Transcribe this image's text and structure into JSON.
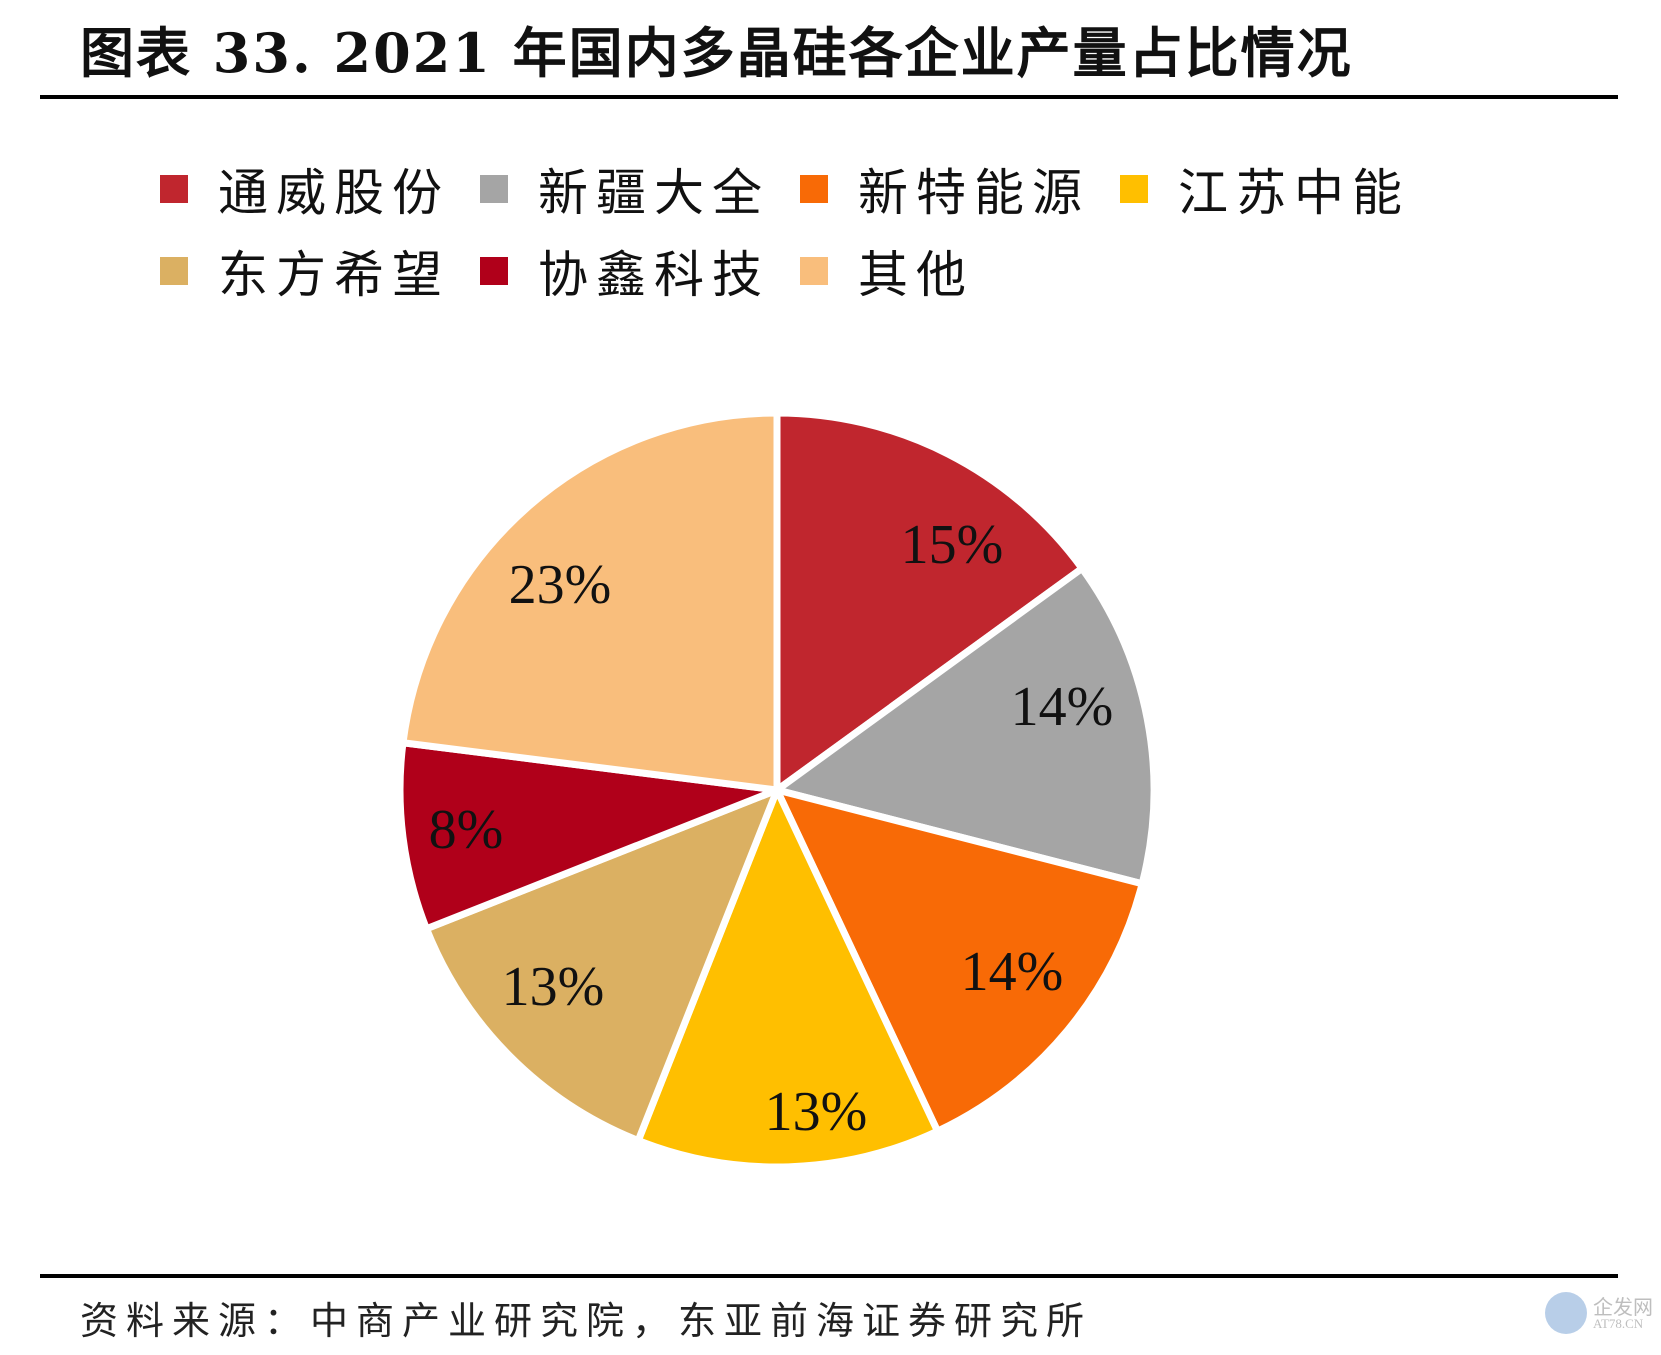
{
  "header": {
    "title": "图表 33. 2021 年国内多晶硅各企业产量占比情况"
  },
  "legend": {
    "rows": [
      [
        {
          "label": "通威股份",
          "color": "#C0262E"
        },
        {
          "label": "新疆大全",
          "color": "#A5A5A5"
        },
        {
          "label": "新特能源",
          "color": "#F86A06"
        },
        {
          "label": "江苏中能",
          "color": "#FFBF00"
        }
      ],
      [
        {
          "label": "东方希望",
          "color": "#DBB062"
        },
        {
          "label": "协鑫科技",
          "color": "#B0001A"
        },
        {
          "label": "其他",
          "color": "#F9BE7C"
        }
      ]
    ]
  },
  "chart_data": {
    "type": "pie",
    "title": "图表 33. 2021 年国内多晶硅各企业产量占比情况",
    "categories": [
      "通威股份",
      "新疆大全",
      "新特能源",
      "江苏中能",
      "东方希望",
      "协鑫科技",
      "其他"
    ],
    "values": [
      15,
      14,
      14,
      13,
      13,
      8,
      23
    ],
    "labels": [
      "15%",
      "14%",
      "14%",
      "13%",
      "13%",
      "8%",
      "23%"
    ],
    "colors": [
      "#C0262E",
      "#A5A5A5",
      "#F86A06",
      "#FFBF00",
      "#DBB062",
      "#B0001A",
      "#F9BE7C"
    ],
    "start_angle": "12 o'clock",
    "direction": "clockwise",
    "legend_position": "top",
    "unit": "%"
  },
  "footer": {
    "source": "资料来源：中商产业研究院，东亚前海证券研究所"
  },
  "watermark": {
    "cn": "企发网",
    "en": "AT78.CN"
  }
}
